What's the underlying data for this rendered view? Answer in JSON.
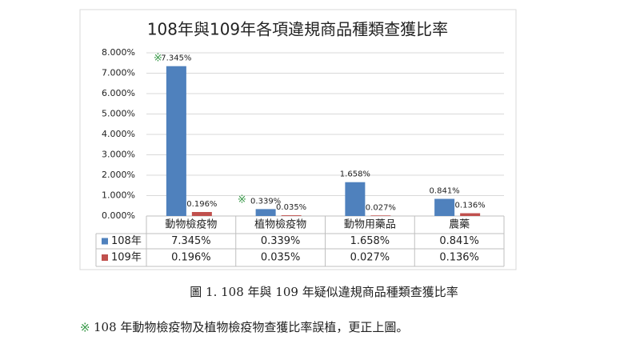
{
  "chart_data": {
    "type": "bar",
    "title": "108年與109年各項違規商品種類查獲比率",
    "categories": [
      "動物檢疫物",
      "植物檢疫物",
      "動物用藥品",
      "農藥"
    ],
    "series": [
      {
        "name": "108年",
        "color": "#4f81bd",
        "values": [
          7.345,
          0.339,
          1.658,
          0.841
        ],
        "value_labels": [
          "7.345%",
          "0.339%",
          "1.658%",
          "0.841%"
        ]
      },
      {
        "name": "109年",
        "color": "#c0504d",
        "values": [
          0.196,
          0.035,
          0.027,
          0.136
        ],
        "value_labels": [
          "0.196%",
          "0.035%",
          "0.027%",
          "0.136%"
        ]
      }
    ],
    "ylim": [
      0,
      8
    ],
    "yticks": [
      {
        "value": 0,
        "label": "0.000%"
      },
      {
        "value": 1,
        "label": "1.000%"
      },
      {
        "value": 2,
        "label": "2.000%"
      },
      {
        "value": 3,
        "label": "3.000%"
      },
      {
        "value": 4,
        "label": "4.000%"
      },
      {
        "value": 5,
        "label": "5.000%"
      },
      {
        "value": 6,
        "label": "6.000%"
      },
      {
        "value": 7,
        "label": "7.000%"
      },
      {
        "value": 8,
        "label": "8.000%"
      }
    ],
    "grid": true,
    "annotations": [
      "※",
      "※"
    ]
  },
  "caption": "圖 1.  108 年與 109 年疑似違規商品種類查獲比率",
  "note": {
    "mark": "※",
    "text": "108 年動物檢疫物及植物檢疫物查獲比率誤植，更正上圖。"
  }
}
